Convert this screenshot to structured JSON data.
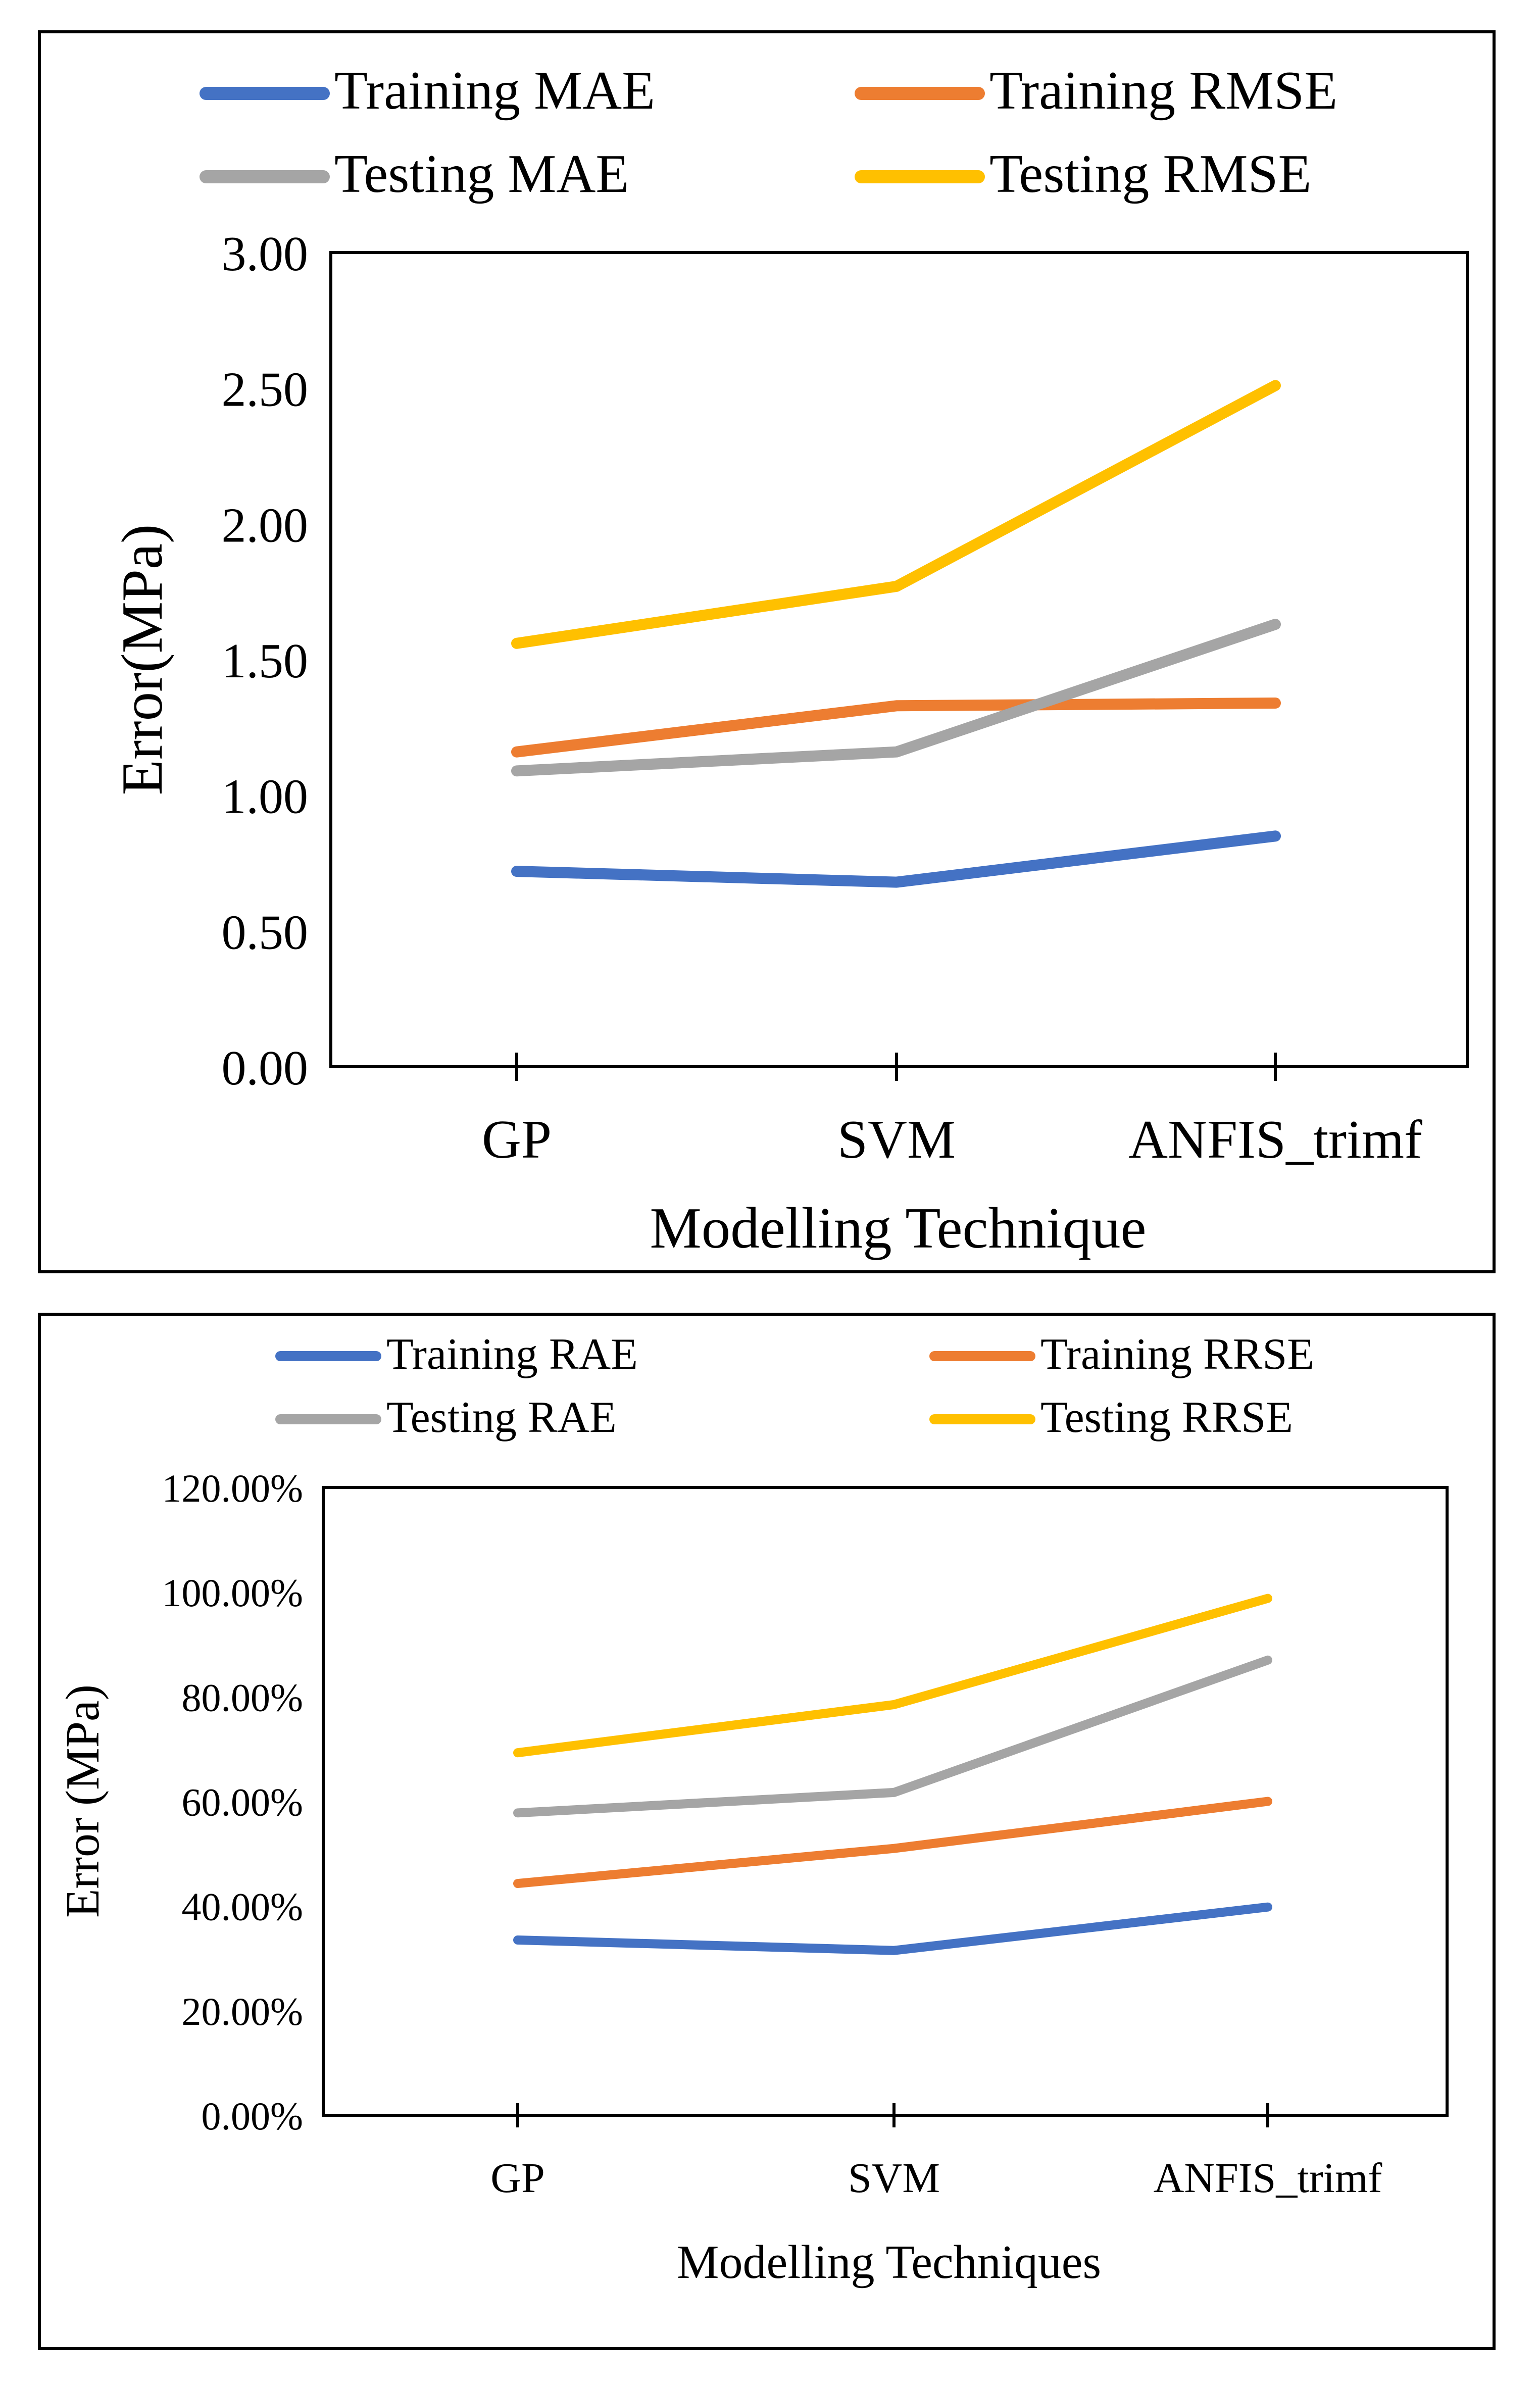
{
  "colors": {
    "blue": "#4472C4",
    "orange": "#ED7D31",
    "gray": "#A5A5A5",
    "yellow": "#FFC000"
  },
  "chart_data": [
    {
      "type": "line",
      "title": "",
      "xlabel": "Modelling Technique",
      "ylabel": "Error(MPa)",
      "categories": [
        "GP",
        "SVM",
        "ANFIS_trimf"
      ],
      "ylim": [
        0,
        3
      ],
      "yticks": [
        "0.00",
        "0.50",
        "1.00",
        "1.50",
        "2.00",
        "2.50",
        "3.00"
      ],
      "legend_position": "top",
      "series": [
        {
          "name": "Training MAE",
          "color": "#4472C4",
          "values": [
            0.72,
            0.68,
            0.85
          ]
        },
        {
          "name": "Training RMSE",
          "color": "#ED7D31",
          "values": [
            1.16,
            1.33,
            1.34
          ]
        },
        {
          "name": "Testing MAE",
          "color": "#A5A5A5",
          "values": [
            1.09,
            1.16,
            1.63
          ]
        },
        {
          "name": "Testing RMSE",
          "color": "#FFC000",
          "values": [
            1.56,
            1.77,
            2.51
          ]
        }
      ]
    },
    {
      "type": "line",
      "title": "",
      "xlabel": "Modelling Techniques",
      "ylabel": "Error (MPa)",
      "categories": [
        "GP",
        "SVM",
        "ANFIS_trimf"
      ],
      "ylim": [
        0,
        120
      ],
      "yticks": [
        "0.00%",
        "20.00%",
        "40.00%",
        "60.00%",
        "80.00%",
        "100.00%",
        "120.00%"
      ],
      "legend_position": "top",
      "series": [
        {
          "name": "Training RAE",
          "color": "#4472C4",
          "values": [
            33.5,
            31.5,
            39.8
          ]
        },
        {
          "name": "Training RRSE",
          "color": "#ED7D31",
          "values": [
            44.3,
            51.0,
            60.0
          ]
        },
        {
          "name": "Testing RAE",
          "color": "#A5A5A5",
          "values": [
            57.8,
            61.7,
            87.0
          ]
        },
        {
          "name": "Testing RRSE",
          "color": "#FFC000",
          "values": [
            69.3,
            78.5,
            98.8
          ]
        }
      ]
    }
  ]
}
